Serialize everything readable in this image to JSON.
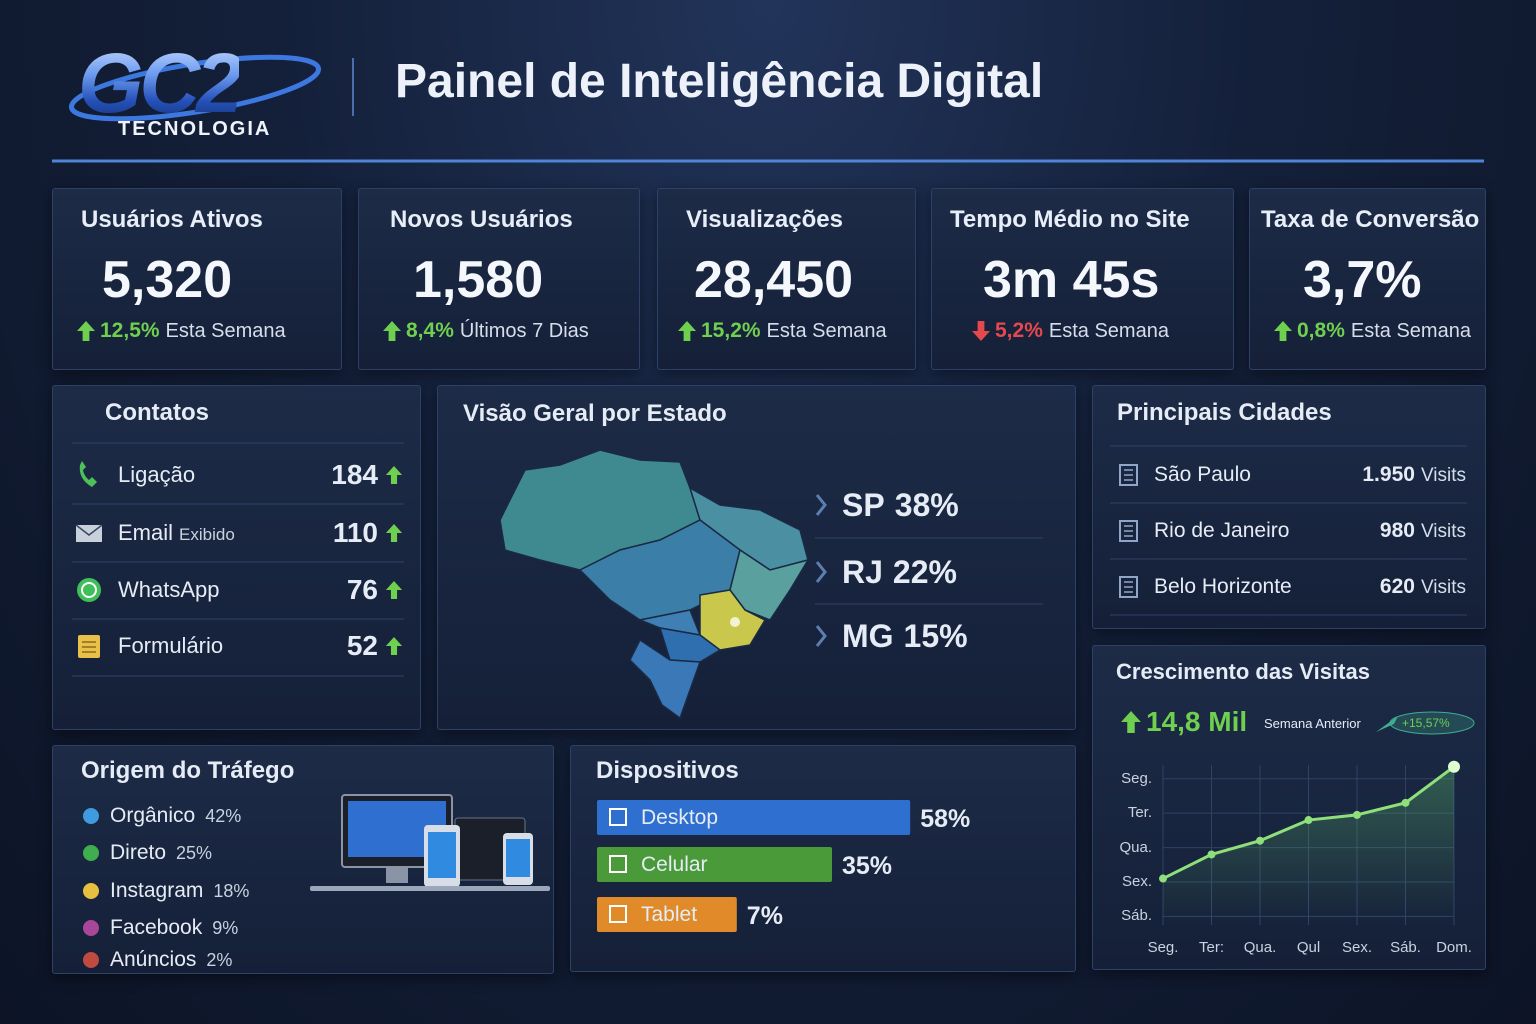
{
  "header": {
    "logo": "GC2",
    "logo_subtitle": "TECNOLOGIA",
    "title": "Painel de Inteligência Digital"
  },
  "kpis": [
    {
      "label": "Usuários Ativos",
      "value": "5,320",
      "change": "12,5%",
      "period": "Esta Semana",
      "trend": "up"
    },
    {
      "label": "Novos Usuários",
      "value": "1,580",
      "change": "8,4%",
      "period": "Últimos 7 Dias",
      "trend": "up"
    },
    {
      "label": "Visualizações",
      "value": "28,450",
      "change": "15,2%",
      "period": "Esta Semana",
      "trend": "up"
    },
    {
      "label": "Tempo Médio no Site",
      "value": "3m 45s",
      "change": "5,2%",
      "period": "Esta Semana",
      "trend": "down"
    },
    {
      "label": "Taxa de Conversão",
      "value": "3,7%",
      "change": "0,8%",
      "period": "Esta Semana",
      "trend": "up"
    }
  ],
  "contacts": {
    "title": "Contatos",
    "rows": [
      {
        "label": "Ligação",
        "value": 184,
        "trend": "up"
      },
      {
        "label": "Email",
        "note": "Exibido",
        "value": 110,
        "trend": "up"
      },
      {
        "label": "WhatsApp",
        "value": 76,
        "trend": "up"
      },
      {
        "label": "Formulário",
        "value": 52,
        "trend": "up"
      }
    ]
  },
  "states": {
    "title": "Visão Geral por Estado",
    "rows": [
      {
        "state": "SP",
        "share": "38%"
      },
      {
        "state": "RJ",
        "share": "22%"
      },
      {
        "state": "MG",
        "share": "15%"
      }
    ]
  },
  "cities": {
    "title": "Principais Cidades",
    "unit": "Visits",
    "rows": [
      {
        "name": "São Paulo",
        "visits": "1.950"
      },
      {
        "name": "Rio de Janeiro",
        "visits": "980"
      },
      {
        "name": "Belo Horizonte",
        "visits": "620"
      }
    ]
  },
  "growth": {
    "title": "Crescimento das Visitas",
    "total": "14,8 Mil",
    "trend": "up",
    "comparison": "Semana Anterior",
    "badge": "+15,57%",
    "chart": {
      "type": "line",
      "categories": [
        "Seg.",
        "Ter:",
        "Qua.",
        "Qul",
        "Sex.",
        "Sáb.",
        "Dom."
      ],
      "values": [
        1.1,
        1.8,
        2.2,
        2.8,
        2.95,
        3.3,
        4.35
      ],
      "color": "#8fe07a",
      "grid": true,
      "ylim": [
        -0.25,
        4.4
      ],
      "yticks": [
        {
          "value": 4,
          "label": "Seg."
        },
        {
          "value": 3,
          "label": "Ter."
        },
        {
          "value": 2,
          "label": "Qua."
        },
        {
          "value": 1,
          "label": "Sex."
        },
        {
          "value": 0,
          "label": "Sáb."
        }
      ]
    }
  },
  "traffic": {
    "title": "Origem do Tráfego",
    "rows": [
      {
        "name": "Orgânico",
        "share": "42%",
        "color": "#3f9ae0"
      },
      {
        "name": "Direto",
        "share": "25%",
        "color": "#3fae4f"
      },
      {
        "name": "Instagram",
        "share": "18%",
        "color": "#e8c040"
      },
      {
        "name": "Facebook",
        "share": "9%",
        "color": "#a8479a"
      },
      {
        "name": "Anúncios",
        "share": "2%",
        "color": "#c04a40"
      }
    ]
  },
  "devices": {
    "title": "Dispositivos",
    "type": "bar",
    "categories": [
      "Desktop",
      "Celular",
      "Tablet"
    ],
    "values": [
      58,
      35,
      7
    ],
    "value_labels": [
      "58%",
      "35%",
      "7%"
    ],
    "colors": [
      "#2f6fd0",
      "#4a9a3a",
      "#e08a2a"
    ]
  }
}
